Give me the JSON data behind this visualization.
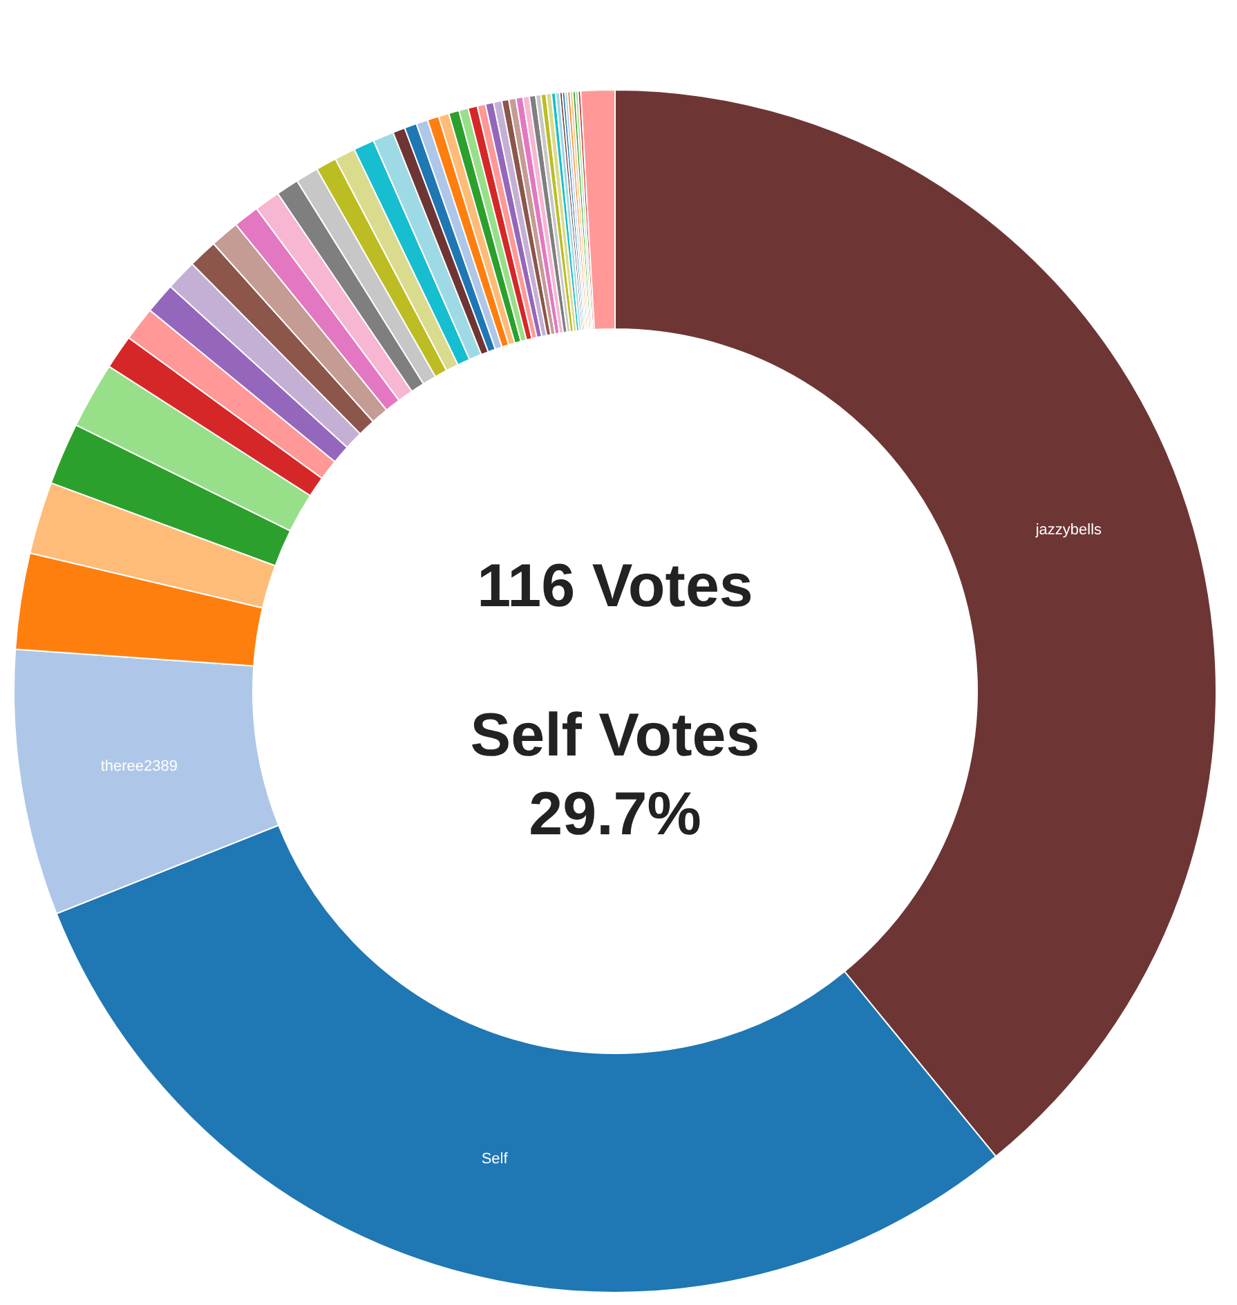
{
  "chart_data": {
    "type": "donut",
    "categories": [
      "jazzybells",
      "Self",
      "theree2389",
      null,
      null,
      null,
      null,
      null,
      null,
      null,
      null,
      null,
      null,
      null,
      null,
      null,
      null,
      null,
      null,
      null,
      null,
      null,
      null,
      null,
      null,
      null,
      null,
      null,
      null,
      null,
      null,
      null,
      null,
      null,
      null,
      null,
      null,
      null,
      null,
      null,
      null,
      null,
      null,
      null,
      null,
      null,
      null,
      null,
      null,
      null,
      null
    ],
    "values": [
      39.08,
      29.89,
      7.14,
      2.58,
      1.94,
      1.67,
      1.78,
      0.92,
      0.92,
      0.83,
      0.83,
      0.78,
      0.78,
      0.69,
      0.69,
      0.61,
      0.61,
      0.56,
      0.56,
      0.56,
      0.56,
      0.33,
      0.33,
      0.31,
      0.31,
      0.28,
      0.28,
      0.25,
      0.25,
      0.22,
      0.22,
      0.22,
      0.19,
      0.19,
      0.19,
      0.17,
      0.17,
      0.14,
      0.14,
      0.14,
      0.11,
      0.11,
      0.07,
      0.07,
      0.07,
      0.07,
      0.07,
      0.07,
      0.07,
      0.07,
      0.91
    ],
    "colors": [
      "#6e3535",
      "#1f77b4",
      "#aec7e8",
      "#ff7f0e",
      "#ffbb78",
      "#2ca02c",
      "#98df8a",
      "#d62728",
      "#ff9896",
      "#9467bd",
      "#c5b0d5",
      "#8c564b",
      "#c49c94",
      "#e377c2",
      "#f7b6d2",
      "#7f7f7f",
      "#c7c7c7",
      "#bcbd22",
      "#dbdb8d",
      "#17becf",
      "#9edae5",
      "#6e3535",
      "#1f77b4",
      "#aec7e8",
      "#ff7f0e",
      "#ffbb78",
      "#2ca02c",
      "#98df8a",
      "#d62728",
      "#ff9896",
      "#9467bd",
      "#c5b0d5",
      "#8c564b",
      "#c49c94",
      "#e377c2",
      "#f7b6d2",
      "#7f7f7f",
      "#c7c7c7",
      "#bcbd22",
      "#dbdb8d",
      "#17becf",
      "#9edae5",
      "#6e3535",
      "#1f77b4",
      "#aec7e8",
      "#ff7f0e",
      "#ffbb78",
      "#2ca02c",
      "#98df8a",
      "#d62728",
      "#ff9896"
    ],
    "annotations": [
      "116 Votes",
      "Self Votes",
      "29.7%"
    ]
  }
}
